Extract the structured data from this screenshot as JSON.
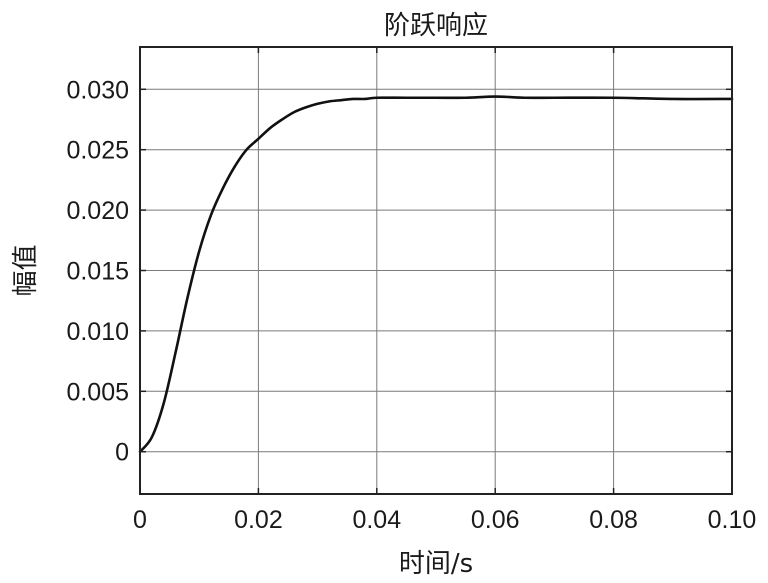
{
  "chart_data": {
    "type": "line",
    "title": "阶跃响应",
    "xlabel": "时间/s",
    "ylabel": "幅值",
    "xlim": [
      0,
      0.1
    ],
    "ylim": [
      -0.0035,
      0.0335
    ],
    "grid": true,
    "x_ticks": [
      0,
      0.02,
      0.04,
      0.06,
      0.08,
      0.1
    ],
    "x_tick_labels": [
      "0",
      "0.02",
      "0.04",
      "0.06",
      "0.08",
      "0.10"
    ],
    "y_ticks": [
      0,
      0.005,
      0.01,
      0.015,
      0.02,
      0.025,
      0.03
    ],
    "y_tick_labels": [
      "0",
      "0.005",
      "0.010",
      "0.015",
      "0.020",
      "0.025",
      "0.030"
    ],
    "series": [
      {
        "line_color": "#111111",
        "x": [
          0,
          0.002,
          0.004,
          0.006,
          0.008,
          0.01,
          0.012,
          0.014,
          0.016,
          0.018,
          0.02,
          0.022,
          0.024,
          0.026,
          0.028,
          0.03,
          0.032,
          0.034,
          0.036,
          0.038,
          0.04,
          0.045,
          0.05,
          0.055,
          0.06,
          0.065,
          0.07,
          0.08,
          0.09,
          0.1
        ],
        "y": [
          0,
          0.0012,
          0.004,
          0.0082,
          0.0127,
          0.0166,
          0.0196,
          0.0218,
          0.0236,
          0.025,
          0.0259,
          0.0268,
          0.0275,
          0.0281,
          0.0285,
          0.0288,
          0.029,
          0.0291,
          0.0292,
          0.0292,
          0.0293,
          0.0293,
          0.0293,
          0.0293,
          0.0294,
          0.0293,
          0.0293,
          0.0293,
          0.0292,
          0.0292
        ]
      }
    ]
  }
}
